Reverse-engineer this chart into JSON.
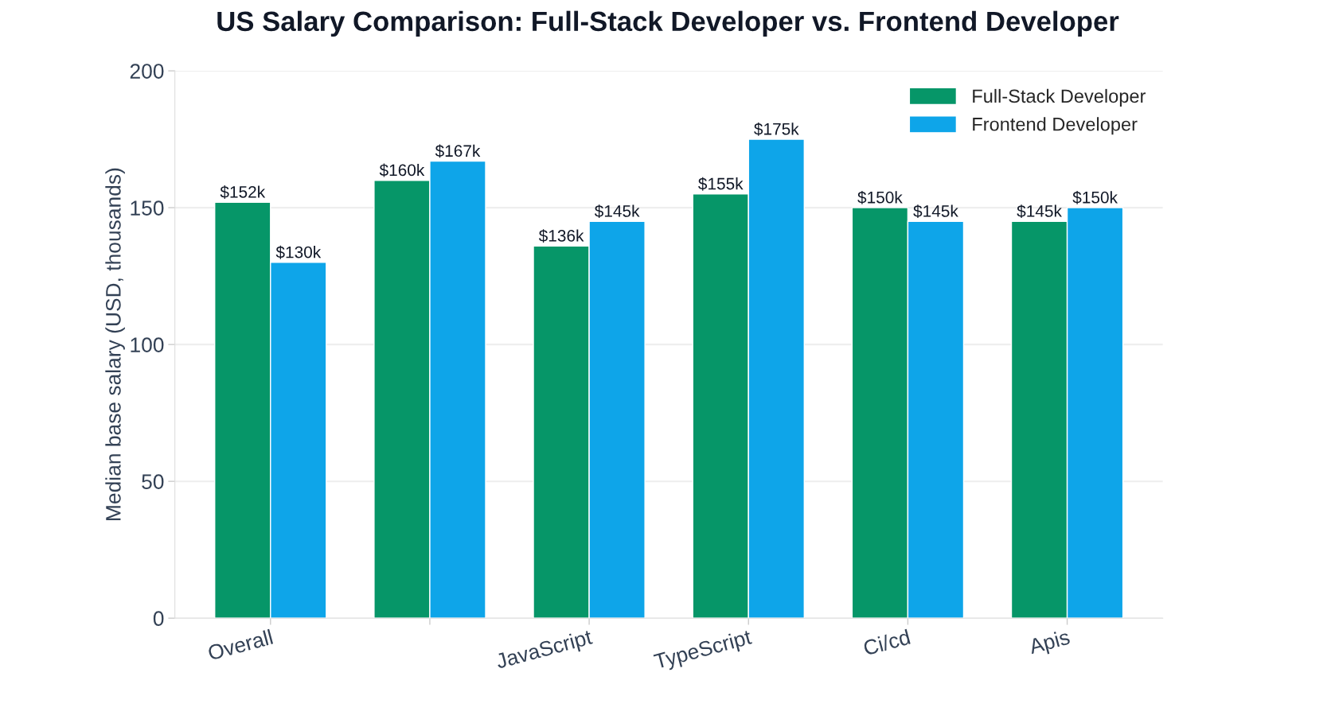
{
  "chart_data": {
    "type": "bar",
    "title": "US Salary Comparison: Full-Stack Developer vs. Frontend Developer",
    "ylabel": "Median base salary (USD, thousands)",
    "categories": [
      "Overall",
      null,
      "JavaScript",
      "TypeScript",
      "Ci/cd",
      "Apis"
    ],
    "series": [
      {
        "name": "Full-Stack Developer",
        "color": "#069668",
        "values": [
          152,
          160,
          136,
          155,
          150,
          145
        ],
        "value_labels": [
          "$152k",
          "$160k",
          "$136k",
          "$155k",
          "$150k",
          "$145k"
        ]
      },
      {
        "name": "Frontend Developer",
        "color": "#0ea5e9",
        "values": [
          130,
          167,
          145,
          175,
          145,
          150
        ],
        "value_labels": [
          "$130k",
          "$167k",
          "$145k",
          "$175k",
          "$145k",
          "$150k"
        ]
      }
    ],
    "ylim": [
      0,
      200
    ],
    "yticks": [
      0,
      50,
      100,
      150,
      200
    ],
    "grid": "y",
    "legend": "top right"
  }
}
